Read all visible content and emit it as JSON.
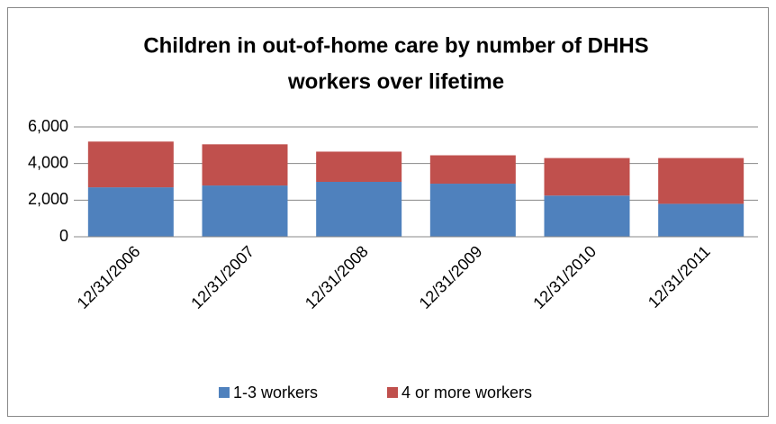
{
  "chart_data": {
    "type": "stacked_bar",
    "title": [
      "Children in out-of-home care by number of DHHS",
      "workers over lifetime"
    ],
    "categories": [
      "12/31/2006",
      "12/31/2007",
      "12/31/2008",
      "12/31/2009",
      "12/31/2010",
      "12/31/2011"
    ],
    "series": [
      {
        "name": "1-3 workers",
        "color": "#4f81bd",
        "values": [
          2700,
          2800,
          3000,
          2900,
          2250,
          1800
        ]
      },
      {
        "name": "4 or more workers",
        "color": "#c0504d",
        "values": [
          2500,
          2250,
          1650,
          1550,
          2050,
          2500
        ]
      }
    ],
    "ylim": [
      0,
      6000
    ],
    "yticks": [
      0,
      {
        "value": 2000,
        "label": "2,000"
      },
      {
        "value": 4000,
        "label": "4,000"
      },
      {
        "value": 6000,
        "label": "6,000"
      }
    ],
    "grid": true,
    "legend": "bottom"
  }
}
